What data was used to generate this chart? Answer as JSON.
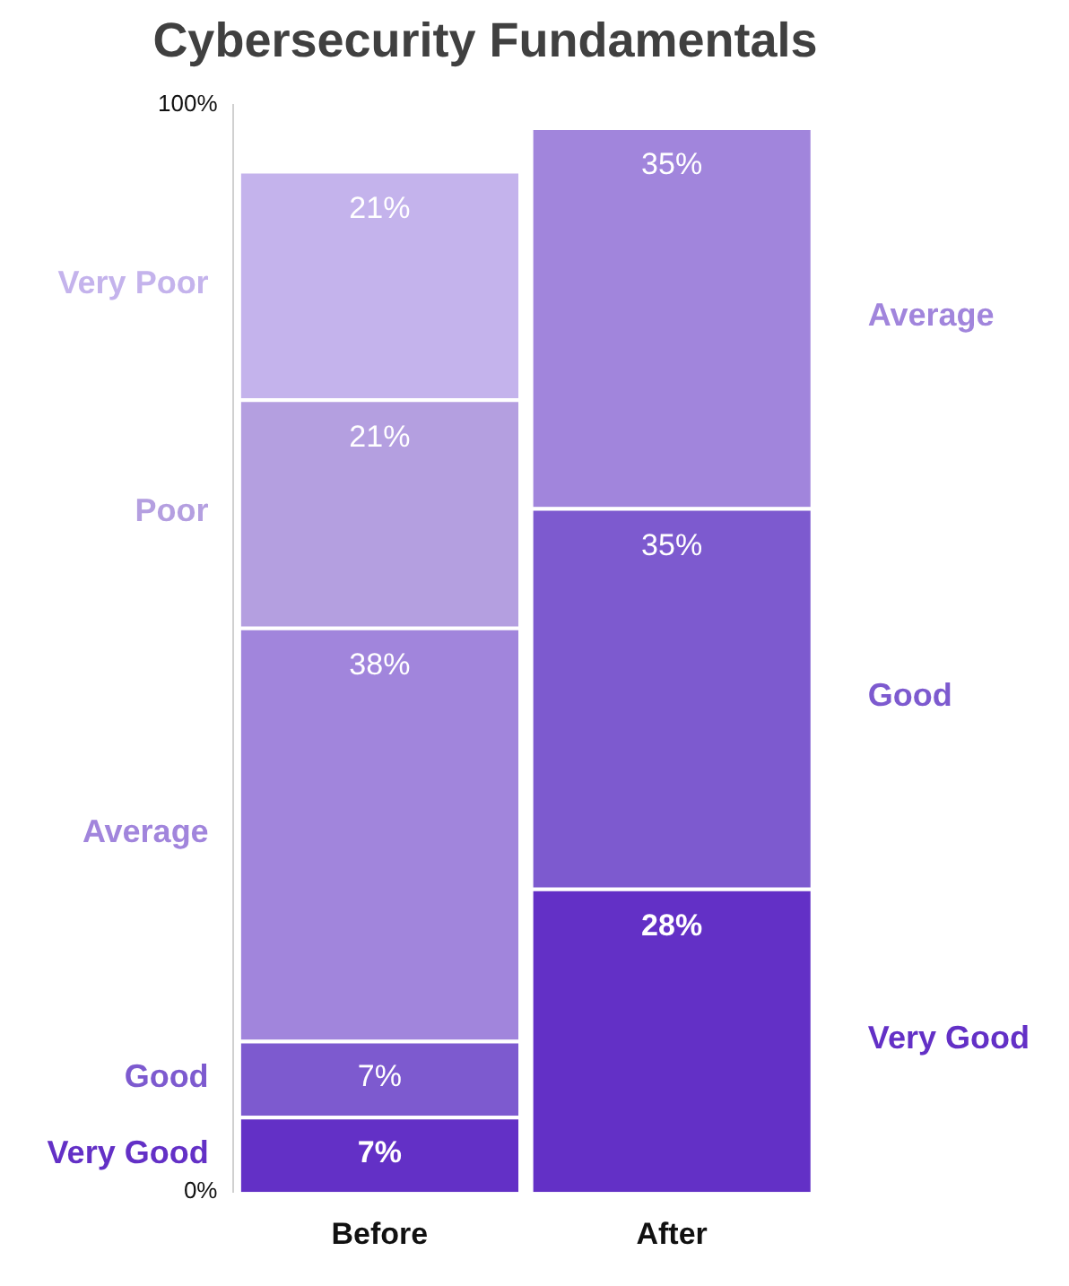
{
  "chart_data": {
    "type": "bar",
    "title": "Cybersecurity Fundamentals",
    "stacked": true,
    "categories": [
      "Before",
      "After"
    ],
    "series": [
      {
        "name": "Very Good",
        "color": "#6330c6",
        "values": [
          7,
          28
        ],
        "value_labels": [
          "7%",
          "28%"
        ]
      },
      {
        "name": "Good",
        "color": "#7d5acf",
        "values": [
          7,
          35
        ],
        "value_labels": [
          "7%",
          "35%"
        ]
      },
      {
        "name": "Average",
        "color": "#a185dc",
        "values": [
          38,
          35
        ],
        "value_labels": [
          "38%",
          "35%"
        ]
      },
      {
        "name": "Poor",
        "color": "#b49fe0",
        "values": [
          21,
          null
        ],
        "value_labels": [
          "21%",
          null
        ]
      },
      {
        "name": "Very Poor",
        "color": "#c4b3ec",
        "values": [
          21,
          null
        ],
        "value_labels": [
          "21%",
          null
        ]
      }
    ],
    "ylim": [
      0,
      100
    ],
    "yticks": [
      {
        "value": 0,
        "label": "0%"
      },
      {
        "value": 100,
        "label": "100%"
      }
    ],
    "grid": false,
    "legend": false
  }
}
